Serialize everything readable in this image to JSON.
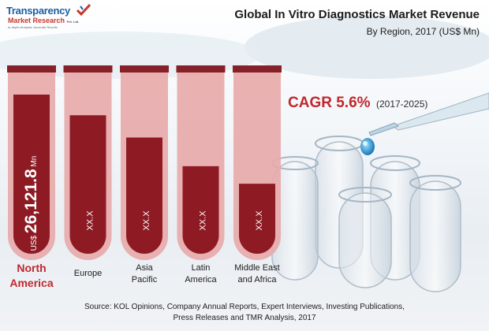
{
  "logo": {
    "line1": "Transparency",
    "line2": "Market Research",
    "line2_suffix": "Pvt. Ltd.",
    "tagline": "In-depth Analysis. Accurate Results"
  },
  "title": "Global In Vitro Diagnostics Market Revenue",
  "subtitle": "By Region, 2017 (US$ Mn)",
  "cagr": {
    "value": "CAGR 5.6%",
    "period": "(2017-2025)"
  },
  "source_line1": "Source: KOL Opinions, Company Annual Reports, Expert Interviews, Investing Publications,",
  "source_line2": "Press Releases and TMR Analysis, 2017",
  "colors": {
    "bar_fill": "#8e1b24",
    "tube_bg": "#e8a9a8",
    "tube_cap": "#862029",
    "accent_red": "#c0282e"
  },
  "chart_data": {
    "type": "bar",
    "title": "Global In Vitro Diagnostics Market Revenue",
    "subtitle": "By Region, 2017 (US$ Mn)",
    "categories": [
      "North America",
      "Europe",
      "Asia Pacific",
      "Latin America",
      "Middle East and Africa"
    ],
    "category_lines": [
      [
        "North",
        "America"
      ],
      [
        "Europe"
      ],
      [
        "Asia",
        "Pacific"
      ],
      [
        "Latin",
        "America"
      ],
      [
        "Middle East",
        "and Africa"
      ]
    ],
    "value_labels": [
      {
        "prefix": "US$",
        "main": "26,121.8",
        "unit": "Mn"
      },
      {
        "prefix": "",
        "main": "XX.X",
        "unit": ""
      },
      {
        "prefix": "",
        "main": "XX.X",
        "unit": ""
      },
      {
        "prefix": "",
        "main": "XX.X",
        "unit": ""
      },
      {
        "prefix": "",
        "main": "XX.X",
        "unit": ""
      }
    ],
    "values": [
      26121.8,
      null,
      null,
      null,
      null
    ],
    "relative_levels": [
      1.0,
      0.87,
      0.73,
      0.55,
      0.44
    ]
  }
}
